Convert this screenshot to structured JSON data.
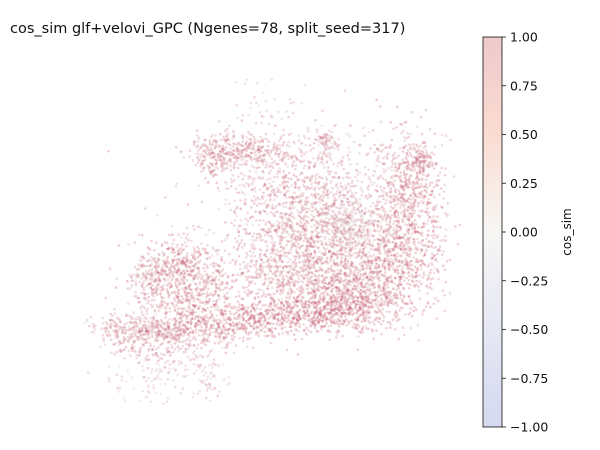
{
  "chart_data": {
    "type": "scatter",
    "title": "cos_sim glf+velovi_GPC (Ngenes=78, split_seed=317)",
    "axes_visible": false,
    "point_color_scale": "cos_sim",
    "point_cos_sim_range": [
      0.15,
      0.75
    ],
    "colorbar": {
      "label": "cos_sim",
      "range": [
        -1.0,
        1.0
      ],
      "ticks": [
        1.0,
        0.75,
        0.5,
        0.25,
        0.0,
        -0.25,
        -0.5,
        -0.75,
        -1.0
      ],
      "tick_labels": [
        "1.00",
        "0.75",
        "0.50",
        "0.25",
        "0.00",
        "−0.25",
        "−0.50",
        "−0.75",
        "−1.00"
      ],
      "colormap": "coolwarm",
      "alpha": 0.25
    },
    "colors": {
      "cmap_low": "#3b4cc0",
      "cmap_mid": "#dddddd",
      "cmap_high": "#b40426"
    }
  }
}
